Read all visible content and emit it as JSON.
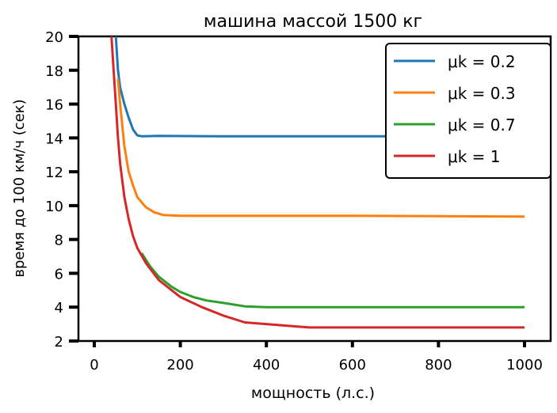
{
  "chart_data": {
    "type": "line",
    "title": "машина массой 1500 кг",
    "xlabel": "мощность (л.с.)",
    "ylabel": "время до 100 км/ч (сек)",
    "xlim": [
      -40,
      1030
    ],
    "ylim": [
      2,
      20
    ],
    "xticks": [
      "0",
      "200",
      "400",
      "600",
      "800",
      "1000"
    ],
    "yticks": [
      "2",
      "4",
      "6",
      "8",
      "10",
      "12",
      "14",
      "16",
      "18",
      "20"
    ],
    "legend_position": "top-right",
    "grid": false,
    "series": [
      {
        "name": "μk = 0.2",
        "color": "#1f77b4",
        "x": [
          50,
          55,
          60,
          70,
          80,
          90,
          100,
          110,
          150,
          300,
          500,
          700,
          1000
        ],
        "y": [
          20,
          18,
          17,
          16,
          15.2,
          14.5,
          14.15,
          14.1,
          14.12,
          14.1,
          14.1,
          14.1,
          14.1
        ]
      },
      {
        "name": "μk = 0.3",
        "color": "#ff7f0e",
        "x": [
          55,
          60,
          70,
          80,
          90,
          100,
          120,
          140,
          160,
          200,
          400,
          600,
          1000
        ],
        "y": [
          17.5,
          16,
          13.5,
          12,
          11.2,
          10.5,
          9.9,
          9.6,
          9.45,
          9.4,
          9.4,
          9.4,
          9.35
        ]
      },
      {
        "name": "μk = 0.7",
        "color": "#2ca02c",
        "x": [
          110,
          130,
          150,
          180,
          200,
          230,
          260,
          300,
          350,
          400,
          600,
          1000
        ],
        "y": [
          7.2,
          6.4,
          5.8,
          5.2,
          4.9,
          4.6,
          4.4,
          4.25,
          4.05,
          4.0,
          4.0,
          4.0
        ]
      },
      {
        "name": "μk = 1",
        "color": "#d62728",
        "x": [
          40,
          45,
          50,
          55,
          60,
          70,
          80,
          90,
          100,
          120,
          150,
          200,
          250,
          300,
          350,
          400,
          500,
          600,
          800,
          1000
        ],
        "y": [
          20,
          18,
          16,
          14,
          12.5,
          10.5,
          9.2,
          8.2,
          7.5,
          6.6,
          5.6,
          4.6,
          4.0,
          3.5,
          3.1,
          3.0,
          2.8,
          2.8,
          2.8,
          2.8
        ]
      }
    ]
  }
}
